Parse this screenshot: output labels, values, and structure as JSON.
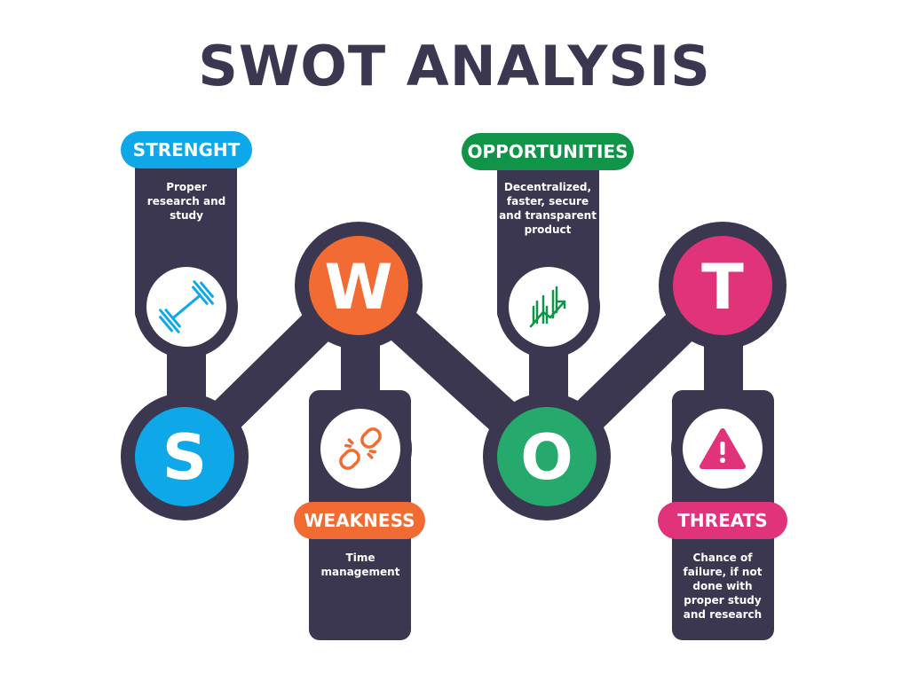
{
  "title": "SWOT ANALYSIS",
  "colors": {
    "dark": "#3c3750",
    "strength": "#0ea8e8",
    "weakness": "#f26b33",
    "opportunities": "#109447",
    "opportunities_circle": "#26a96c",
    "threats": "#e0337a"
  },
  "sections": {
    "strength": {
      "letter": "S",
      "label": "STRENGHT",
      "text": "Proper research and study",
      "icon": "dumbbell-icon"
    },
    "weakness": {
      "letter": "W",
      "label": "WEAKNESS",
      "text": "Time management",
      "icon": "broken-chain-icon"
    },
    "opportunities": {
      "letter": "O",
      "label": "OPPORTUNITIES",
      "text": "Decentralized, faster, secure and transparent product",
      "icon": "growth-chart-icon"
    },
    "threats": {
      "letter": "T",
      "label": "THREATS",
      "text": "Chance of failure, if not done with proper study and research",
      "icon": "warning-icon"
    }
  }
}
